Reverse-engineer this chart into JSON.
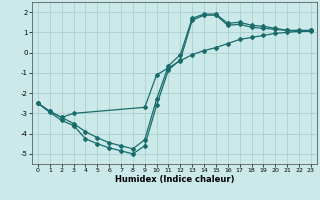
{
  "xlabel": "Humidex (Indice chaleur)",
  "xlim": [
    -0.5,
    23.5
  ],
  "ylim": [
    -5.5,
    2.5
  ],
  "xticks": [
    0,
    1,
    2,
    3,
    4,
    5,
    6,
    7,
    8,
    9,
    10,
    11,
    12,
    13,
    14,
    15,
    16,
    17,
    18,
    19,
    20,
    21,
    22,
    23
  ],
  "yticks": [
    -5,
    -4,
    -3,
    -2,
    -1,
    0,
    1,
    2
  ],
  "background_color": "#cce9e9",
  "grid_color": "#aacece",
  "line_color": "#1a6b6b",
  "line1_x": [
    0,
    1,
    2,
    3,
    4,
    5,
    6,
    7,
    8,
    9,
    10,
    11,
    12,
    13,
    14,
    15,
    16,
    17,
    18,
    19,
    20,
    21,
    22,
    23
  ],
  "line1_y": [
    -2.5,
    -2.95,
    -3.35,
    -3.6,
    -4.25,
    -4.5,
    -4.7,
    -4.85,
    -5.0,
    -4.6,
    -2.6,
    -0.85,
    -0.35,
    1.6,
    1.85,
    1.85,
    1.35,
    1.4,
    1.25,
    1.2,
    1.15,
    1.1,
    1.05,
    1.05
  ],
  "line2_x": [
    0,
    1,
    2,
    3,
    4,
    5,
    6,
    7,
    8,
    9,
    10,
    11,
    12,
    13,
    14,
    15,
    16,
    17,
    18,
    19,
    20,
    21,
    22,
    23
  ],
  "line2_y": [
    -2.5,
    -2.9,
    -3.2,
    -3.5,
    -3.9,
    -4.2,
    -4.45,
    -4.6,
    -4.75,
    -4.3,
    -2.3,
    -0.65,
    -0.1,
    1.7,
    1.9,
    1.9,
    1.45,
    1.5,
    1.35,
    1.3,
    1.2,
    1.1,
    1.1,
    1.1
  ],
  "line3_x": [
    0,
    1,
    2,
    3,
    9,
    10,
    11,
    12,
    13,
    14,
    15,
    16,
    17,
    18,
    19,
    20,
    21,
    22,
    23
  ],
  "line3_y": [
    -2.5,
    -2.9,
    -3.2,
    -3.0,
    -2.7,
    -1.1,
    -0.75,
    -0.4,
    -0.1,
    0.1,
    0.25,
    0.45,
    0.65,
    0.75,
    0.85,
    0.95,
    1.0,
    1.05,
    1.1
  ]
}
